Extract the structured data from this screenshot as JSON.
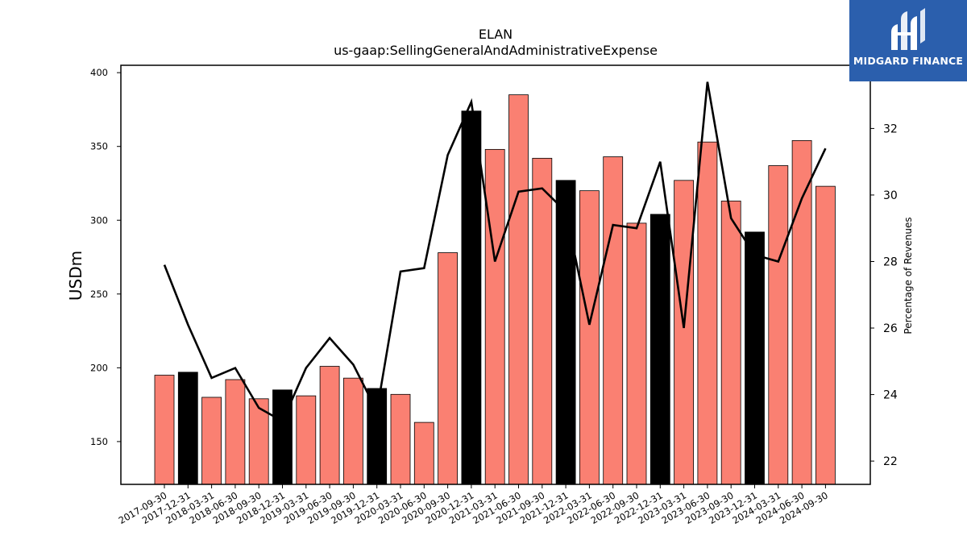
{
  "brand": {
    "name": "MIDGARD FINANCE",
    "logo_icon": "midgard-logo-icon",
    "background": "#2b5fad"
  },
  "chart_data": {
    "type": "bar",
    "title": "ELAN",
    "subtitle": "us-gaap:SellingGeneralAndAdministrativeExpense",
    "ylabel": "USDm",
    "y2label": "Percentage of Revenues",
    "ylim": [
      121,
      405
    ],
    "y2lim": [
      21.3,
      33.9
    ],
    "yticks": [
      150,
      200,
      250,
      300,
      350,
      400
    ],
    "y2ticks": [
      22,
      24,
      26,
      28,
      30,
      32
    ],
    "colors": {
      "quarter": "#fa8072",
      "year_end": "#000000",
      "line": "#000000"
    },
    "categories": [
      "2017-09-30",
      "2017-12-31",
      "2018-03-31",
      "2018-06-30",
      "2018-09-30",
      "2018-12-31",
      "2019-03-31",
      "2019-06-30",
      "2019-09-30",
      "2019-12-31",
      "2020-03-31",
      "2020-06-30",
      "2020-09-30",
      "2020-12-31",
      "2021-03-31",
      "2021-06-30",
      "2021-09-30",
      "2021-12-31",
      "2022-03-31",
      "2022-06-30",
      "2022-09-30",
      "2022-12-31",
      "2023-03-31",
      "2023-06-30",
      "2023-09-30",
      "2023-12-31",
      "2024-03-31",
      "2024-06-30",
      "2024-09-30"
    ],
    "series": [
      {
        "values": [
          195,
          197,
          180,
          192,
          179,
          185,
          181,
          201,
          193,
          186,
          182,
          163,
          278,
          374,
          348,
          385,
          342,
          327,
          320,
          343,
          298,
          304,
          327,
          353,
          313,
          292,
          337,
          354,
          323
        ]
      },
      {
        "axis": "right",
        "type": "line",
        "values": [
          27.9,
          26.1,
          24.5,
          24.8,
          23.6,
          23.2,
          24.8,
          25.7,
          24.9,
          23.5,
          27.7,
          27.8,
          31.2,
          32.8,
          28.0,
          30.1,
          30.2,
          29.5,
          26.1,
          29.1,
          29.0,
          31.0,
          26.0,
          33.4,
          29.3,
          28.2,
          28.0,
          29.9,
          31.4
        ]
      }
    ],
    "year_end_flags": [
      false,
      true,
      false,
      false,
      false,
      true,
      false,
      false,
      false,
      true,
      false,
      false,
      false,
      true,
      false,
      false,
      false,
      true,
      false,
      false,
      false,
      true,
      false,
      false,
      false,
      true,
      false,
      false,
      false
    ]
  }
}
